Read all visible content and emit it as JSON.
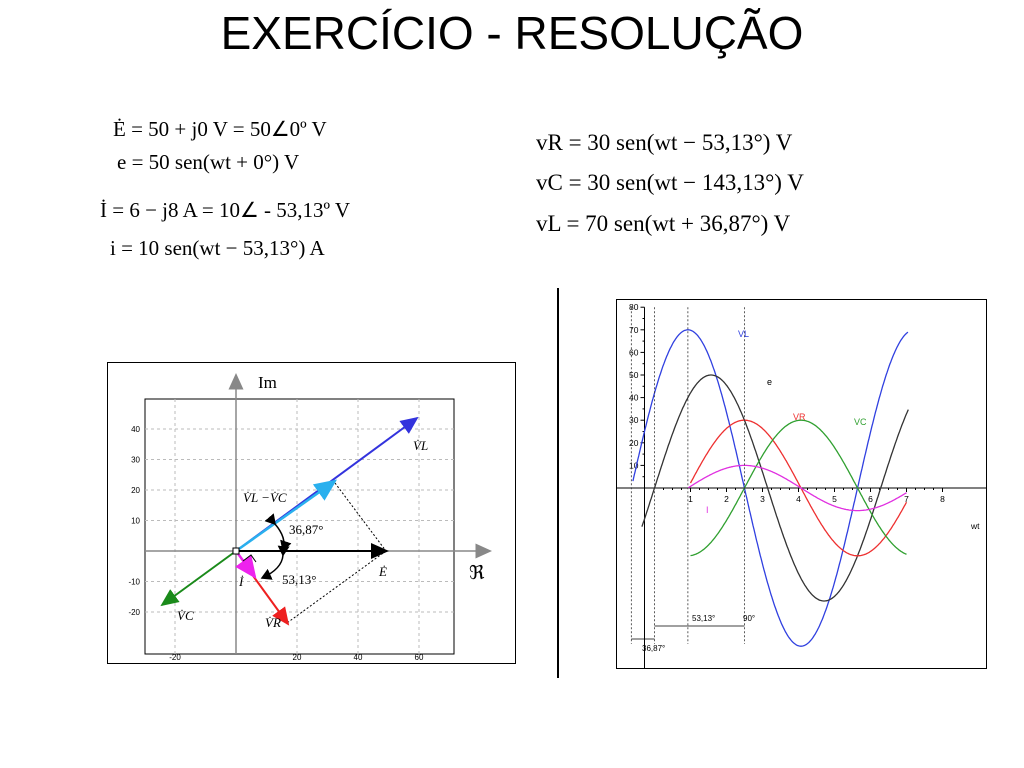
{
  "title": "EXERCÍCIO - RESOLUÇÃO",
  "equations_left": [
    "Ė = 50 + j0 V = 50∠0º V",
    "e = 50 sen(wt + 0°) V",
    "İ = 6 − j8 A = 10∠ - 53,13º V",
    "i = 10 sen(wt − 53,13°) A"
  ],
  "equations_right": [
    "vR = 30 sen(wt − 53,13°) V",
    "vC = 30 sen(wt − 143,13°) V",
    "vL = 70 sen(wt + 36,87°) V"
  ],
  "phasor": {
    "axis_im": "Im",
    "axis_re": "ℜ",
    "x_ticks": [
      "-20",
      "20",
      "40",
      "60"
    ],
    "y_ticks": [
      "40",
      "30",
      "20",
      "10",
      "-10",
      "-20"
    ],
    "label_vl": "V̇L",
    "label_vlvc": "V̇L −V̇C",
    "label_e": "Ė",
    "label_i": "İ",
    "label_vc": "V̇C",
    "label_vr": "V̇R",
    "angle1": "36,87°",
    "angle2": "53,13°",
    "colors": {
      "vl": "#3333dd",
      "vlvc": "#2ab0ee",
      "vc": "#1a8a1a",
      "vr": "#ee2020",
      "i": "#ee22ee",
      "e": "#000000"
    }
  },
  "waveforms": {
    "y_ticks": [
      "80",
      "70",
      "60",
      "50",
      "40",
      "30",
      "20",
      "10"
    ],
    "x_ticks": [
      "1",
      "2",
      "3",
      "4",
      "5",
      "6",
      "7",
      "8"
    ],
    "xlabel": "wt",
    "label_vl": "VL",
    "label_e": "e",
    "label_vr": "VR",
    "label_vc": "VC",
    "label_i": "I",
    "ann1": "53,13°",
    "ann2": "90°",
    "ann3": "36,87°",
    "colors": {
      "vl": "#3040e0",
      "e": "#333333",
      "vr": "#ee3030",
      "vc": "#30a030",
      "i": "#e030e0"
    }
  }
}
